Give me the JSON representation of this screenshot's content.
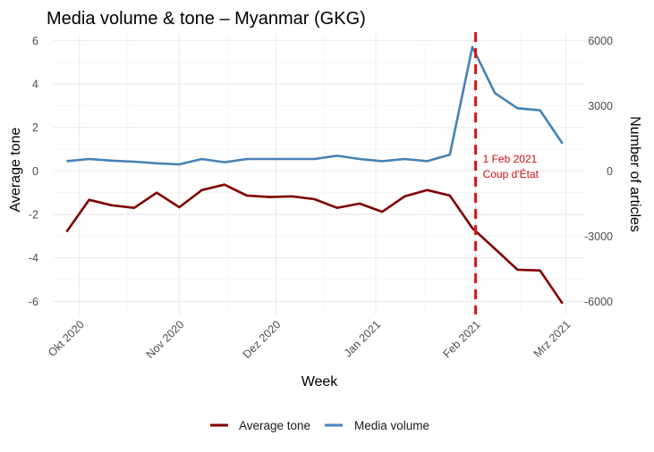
{
  "chart_data": {
    "type": "line",
    "title": "Media volume & tone – Myanmar (GKG)",
    "xlabel": "Week",
    "ylabel": "Average tone",
    "y2label": "Number of articles",
    "x_dates": [
      "2020-09-27",
      "2020-10-04",
      "2020-10-11",
      "2020-10-18",
      "2020-10-25",
      "2020-11-01",
      "2020-11-08",
      "2020-11-15",
      "2020-11-22",
      "2020-11-29",
      "2020-12-06",
      "2020-12-13",
      "2020-12-20",
      "2020-12-27",
      "2021-01-03",
      "2021-01-10",
      "2021-01-17",
      "2021-01-24",
      "2021-01-31",
      "2021-02-07",
      "2021-02-14",
      "2021-02-21",
      "2021-02-28"
    ],
    "xlim": [
      "2020-09-23",
      "2021-03-07"
    ],
    "x_ticks": [
      {
        "date": "2020-10-01",
        "label": "Okt 2020"
      },
      {
        "date": "2020-11-01",
        "label": "Nov 2020"
      },
      {
        "date": "2020-12-01",
        "label": "Dez 2020"
      },
      {
        "date": "2021-01-01",
        "label": "Jan 2021"
      },
      {
        "date": "2021-02-01",
        "label": "Feb 2021"
      },
      {
        "date": "2021-03-01",
        "label": "Mrz 2021"
      }
    ],
    "x_minor_ticks": [
      "2020-10-16",
      "2020-11-16",
      "2020-12-16",
      "2021-01-16",
      "2021-02-15"
    ],
    "ylim": [
      -6.6,
      6.3
    ],
    "y_ticks": [
      6,
      4,
      2,
      0,
      -2,
      -4,
      -6
    ],
    "y_tick_labels": [
      "6",
      "4",
      "2",
      "0",
      "-2",
      "-4",
      "-6"
    ],
    "y2_scale": 1000,
    "y2_ticks": [
      6000,
      3000,
      0,
      -3000,
      -6000
    ],
    "y2_tick_labels": [
      "6000",
      "3000",
      "0",
      "-3000",
      "-6000"
    ],
    "series": [
      {
        "name": "Average tone",
        "axis": "left",
        "color": "#800000",
        "values": [
          -2.8,
          -1.33,
          -1.58,
          -1.7,
          -1.0,
          -1.67,
          -0.88,
          -0.63,
          -1.13,
          -1.2,
          -1.17,
          -1.3,
          -1.7,
          -1.5,
          -1.88,
          -1.17,
          -0.88,
          -1.13,
          -2.63,
          -3.58,
          -4.54,
          -4.58,
          -6.1
        ]
      },
      {
        "name": "Media volume",
        "axis": "right",
        "color": "#4682b4",
        "values": [
          450,
          550,
          475,
          425,
          350,
          300,
          550,
          400,
          550,
          550,
          550,
          550,
          700,
          550,
          450,
          550,
          450,
          750,
          5700,
          3580,
          2880,
          2790,
          1250
        ]
      }
    ],
    "annotation": {
      "date": "2021-02-01",
      "line1": "1 Feb 2021",
      "line2": "Coup d'État",
      "color": "#dd1111",
      "linestyle": "dashed"
    },
    "legend": {
      "position": "bottom",
      "items": [
        {
          "label": "Average tone",
          "color": "#800000"
        },
        {
          "label": "Media volume",
          "color": "#4682b4"
        }
      ]
    },
    "grid": true,
    "theme": "minimal"
  }
}
